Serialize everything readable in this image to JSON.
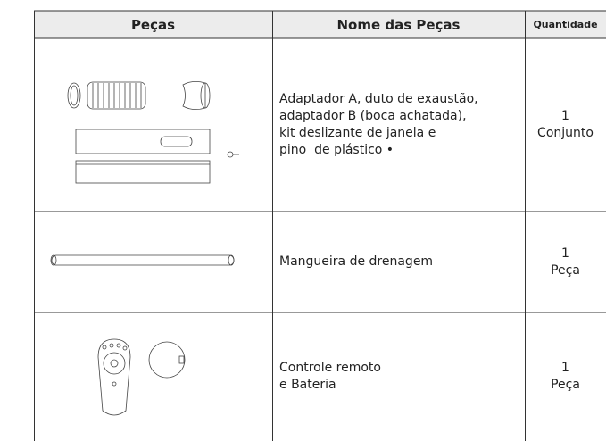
{
  "table": {
    "headers": [
      "Peças",
      "Nome das Peças",
      "Quantidade"
    ],
    "rows": [
      {
        "name": [
          "Adaptador A, duto de exaustão,",
          "adaptador B (boca achatada),",
          "kit deslizante de janela e",
          "pino  de plástico •"
        ],
        "quantity": [
          "1",
          "Conjunto"
        ]
      },
      {
        "name": [
          "Mangueira de drenagem"
        ],
        "quantity": [
          "1",
          "Peça"
        ]
      },
      {
        "name": [
          "Controle remoto",
          "e Bateria"
        ],
        "quantity": [
          "1",
          "Peça"
        ]
      }
    ]
  }
}
